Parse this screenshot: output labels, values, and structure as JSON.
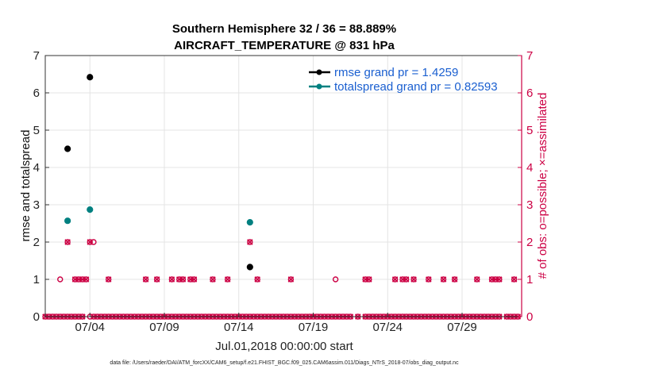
{
  "chart_data": {
    "type": "scatter",
    "title_line1": "Southern Hemisphere 32 / 36 = 88.889%",
    "title_line2": "AIRCRAFT_TEMPERATURE @ 831 hPa",
    "xlabel": "Jul.01,2018 00:00:00 start",
    "ylabel_left": "rmse and totalspread",
    "ylabel_right": "# of obs: o=possible; ×=assimilated",
    "footnote": "data file: /Users/raeder/DAI/ATM_forcXX/CAM6_setup/f.e21.FHIST_BGC.f09_025.CAM6assim.011/Diags_NTrS_2018-07/obs_diag_output.nc",
    "xlim_days": [
      1,
      33
    ],
    "x_ticks": [
      {
        "day": 4,
        "label": "07/04"
      },
      {
        "day": 9,
        "label": "07/09"
      },
      {
        "day": 14,
        "label": "07/14"
      },
      {
        "day": 19,
        "label": "07/19"
      },
      {
        "day": 24,
        "label": "07/24"
      },
      {
        "day": 29,
        "label": "07/29"
      }
    ],
    "ylim_left": [
      0,
      7
    ],
    "ylim_right": [
      0,
      7
    ],
    "y_ticks": [
      0,
      1,
      2,
      3,
      4,
      5,
      6,
      7
    ],
    "grid": true,
    "legend_placement": "top-right",
    "series": [
      {
        "name": "rmse grand pr = 1.4259",
        "color": "#000000",
        "points": [
          [
            2.5,
            4.5
          ],
          [
            4.0,
            6.42
          ],
          [
            14.75,
            1.33
          ]
        ]
      },
      {
        "name": "totalspread grand pr = 0.82593",
        "color": "#008080",
        "points": [
          [
            2.5,
            2.57
          ],
          [
            4.0,
            2.87
          ],
          [
            14.75,
            2.53
          ]
        ]
      }
    ],
    "obs_possible": {
      "color": "#cc0044",
      "points": [
        [
          1.0,
          0
        ],
        [
          1.25,
          0
        ],
        [
          1.5,
          0
        ],
        [
          1.75,
          0
        ],
        [
          2.0,
          0
        ],
        [
          2.25,
          0
        ],
        [
          2.5,
          0
        ],
        [
          2.75,
          0
        ],
        [
          3.0,
          0
        ],
        [
          3.25,
          0
        ],
        [
          3.5,
          0
        ],
        [
          4.0,
          0
        ],
        [
          4.25,
          0
        ],
        [
          4.5,
          0
        ],
        [
          4.75,
          0
        ],
        [
          5.0,
          0
        ],
        [
          5.25,
          0
        ],
        [
          5.5,
          0
        ],
        [
          5.75,
          0
        ],
        [
          6.0,
          0
        ],
        [
          6.25,
          0
        ],
        [
          6.5,
          0
        ],
        [
          6.75,
          0
        ],
        [
          7.0,
          0
        ],
        [
          7.25,
          0
        ],
        [
          7.5,
          0
        ],
        [
          7.75,
          0
        ],
        [
          8.0,
          0
        ],
        [
          8.25,
          0
        ],
        [
          8.5,
          0
        ],
        [
          8.75,
          0
        ],
        [
          9.0,
          0
        ],
        [
          9.25,
          0
        ],
        [
          9.5,
          0
        ],
        [
          9.75,
          0
        ],
        [
          10.0,
          0
        ],
        [
          10.25,
          0
        ],
        [
          10.5,
          0
        ],
        [
          10.75,
          0
        ],
        [
          11.0,
          0
        ],
        [
          11.25,
          0
        ],
        [
          11.5,
          0
        ],
        [
          11.75,
          0
        ],
        [
          12.0,
          0
        ],
        [
          12.25,
          0
        ],
        [
          12.5,
          0
        ],
        [
          12.75,
          0
        ],
        [
          13.0,
          0
        ],
        [
          13.25,
          0
        ],
        [
          13.5,
          0
        ],
        [
          13.75,
          0
        ],
        [
          14.0,
          0
        ],
        [
          14.25,
          0
        ],
        [
          14.5,
          0
        ],
        [
          14.75,
          0
        ],
        [
          15.0,
          0
        ],
        [
          15.25,
          0
        ],
        [
          15.5,
          0
        ],
        [
          15.75,
          0
        ],
        [
          16.0,
          0
        ],
        [
          16.25,
          0
        ],
        [
          16.5,
          0
        ],
        [
          16.75,
          0
        ],
        [
          17.0,
          0
        ],
        [
          17.25,
          0
        ],
        [
          17.5,
          0
        ],
        [
          17.75,
          0
        ],
        [
          18.0,
          0
        ],
        [
          18.25,
          0
        ],
        [
          18.5,
          0
        ],
        [
          18.75,
          0
        ],
        [
          19.0,
          0
        ],
        [
          19.25,
          0
        ],
        [
          19.5,
          0
        ],
        [
          19.75,
          0
        ],
        [
          20.0,
          0
        ],
        [
          20.25,
          0
        ],
        [
          20.5,
          0
        ],
        [
          20.75,
          0
        ],
        [
          21.0,
          0
        ],
        [
          21.25,
          0
        ],
        [
          21.5,
          0
        ],
        [
          22.0,
          0
        ],
        [
          22.5,
          0
        ],
        [
          22.75,
          0
        ],
        [
          23.0,
          0
        ],
        [
          23.25,
          0
        ],
        [
          23.5,
          0
        ],
        [
          23.75,
          0
        ],
        [
          24.0,
          0
        ],
        [
          24.25,
          0
        ],
        [
          24.5,
          0
        ],
        [
          24.75,
          0
        ],
        [
          25.0,
          0
        ],
        [
          25.25,
          0
        ],
        [
          25.5,
          0
        ],
        [
          25.75,
          0
        ],
        [
          26.0,
          0
        ],
        [
          26.25,
          0
        ],
        [
          26.5,
          0
        ],
        [
          26.75,
          0
        ],
        [
          27.0,
          0
        ],
        [
          27.25,
          0
        ],
        [
          27.5,
          0
        ],
        [
          27.75,
          0
        ],
        [
          28.0,
          0
        ],
        [
          28.25,
          0
        ],
        [
          28.5,
          0
        ],
        [
          28.75,
          0
        ],
        [
          29.0,
          0
        ],
        [
          29.25,
          0
        ],
        [
          29.5,
          0
        ],
        [
          29.75,
          0
        ],
        [
          30.0,
          0
        ],
        [
          30.25,
          0
        ],
        [
          30.5,
          0
        ],
        [
          30.75,
          0
        ],
        [
          31.0,
          0
        ],
        [
          31.25,
          0
        ],
        [
          31.5,
          0
        ],
        [
          32.0,
          0
        ],
        [
          32.25,
          0
        ],
        [
          32.5,
          0
        ],
        [
          32.75,
          0
        ],
        [
          2.0,
          1
        ],
        [
          3.0,
          1
        ],
        [
          3.25,
          1
        ],
        [
          3.5,
          1
        ],
        [
          3.75,
          1
        ],
        [
          5.25,
          1
        ],
        [
          7.75,
          1
        ],
        [
          8.5,
          1
        ],
        [
          9.5,
          1
        ],
        [
          10.0,
          1
        ],
        [
          10.25,
          1
        ],
        [
          10.75,
          1
        ],
        [
          11.0,
          1
        ],
        [
          12.25,
          1
        ],
        [
          13.25,
          1
        ],
        [
          15.25,
          1
        ],
        [
          17.5,
          1
        ],
        [
          20.5,
          1
        ],
        [
          22.5,
          1
        ],
        [
          22.75,
          1
        ],
        [
          24.5,
          1
        ],
        [
          25.0,
          1
        ],
        [
          25.25,
          1
        ],
        [
          25.75,
          1
        ],
        [
          26.75,
          1
        ],
        [
          27.75,
          1
        ],
        [
          28.5,
          1
        ],
        [
          30.0,
          1
        ],
        [
          31.0,
          1
        ],
        [
          31.25,
          1
        ],
        [
          31.5,
          1
        ],
        [
          32.5,
          1
        ],
        [
          2.5,
          2
        ],
        [
          4.0,
          2
        ],
        [
          4.25,
          2
        ],
        [
          14.75,
          2
        ]
      ]
    },
    "obs_assimilated": {
      "color": "#cc0044",
      "points": [
        [
          1.0,
          0
        ],
        [
          1.25,
          0
        ],
        [
          1.5,
          0
        ],
        [
          1.75,
          0
        ],
        [
          2.0,
          0
        ],
        [
          2.25,
          0
        ],
        [
          2.5,
          0
        ],
        [
          2.75,
          0
        ],
        [
          3.0,
          0
        ],
        [
          3.25,
          0
        ],
        [
          3.5,
          0
        ],
        [
          4.25,
          0
        ],
        [
          4.5,
          0
        ],
        [
          4.75,
          0
        ],
        [
          5.0,
          0
        ],
        [
          5.25,
          0
        ],
        [
          5.5,
          0
        ],
        [
          5.75,
          0
        ],
        [
          6.0,
          0
        ],
        [
          6.25,
          0
        ],
        [
          6.5,
          0
        ],
        [
          6.75,
          0
        ],
        [
          7.0,
          0
        ],
        [
          7.25,
          0
        ],
        [
          7.5,
          0
        ],
        [
          7.75,
          0
        ],
        [
          8.0,
          0
        ],
        [
          8.25,
          0
        ],
        [
          8.5,
          0
        ],
        [
          8.75,
          0
        ],
        [
          9.0,
          0
        ],
        [
          9.25,
          0
        ],
        [
          9.5,
          0
        ],
        [
          9.75,
          0
        ],
        [
          10.0,
          0
        ],
        [
          10.25,
          0
        ],
        [
          10.5,
          0
        ],
        [
          10.75,
          0
        ],
        [
          11.0,
          0
        ],
        [
          11.25,
          0
        ],
        [
          11.5,
          0
        ],
        [
          11.75,
          0
        ],
        [
          12.0,
          0
        ],
        [
          12.25,
          0
        ],
        [
          12.5,
          0
        ],
        [
          12.75,
          0
        ],
        [
          13.0,
          0
        ],
        [
          13.25,
          0
        ],
        [
          13.5,
          0
        ],
        [
          13.75,
          0
        ],
        [
          14.0,
          0
        ],
        [
          14.25,
          0
        ],
        [
          14.5,
          0
        ],
        [
          14.75,
          0
        ],
        [
          15.0,
          0
        ],
        [
          15.25,
          0
        ],
        [
          15.5,
          0
        ],
        [
          15.75,
          0
        ],
        [
          16.0,
          0
        ],
        [
          16.25,
          0
        ],
        [
          16.5,
          0
        ],
        [
          16.75,
          0
        ],
        [
          17.0,
          0
        ],
        [
          17.25,
          0
        ],
        [
          17.5,
          0
        ],
        [
          17.75,
          0
        ],
        [
          18.0,
          0
        ],
        [
          18.25,
          0
        ],
        [
          18.5,
          0
        ],
        [
          18.75,
          0
        ],
        [
          19.0,
          0
        ],
        [
          19.25,
          0
        ],
        [
          19.5,
          0
        ],
        [
          19.75,
          0
        ],
        [
          20.0,
          0
        ],
        [
          20.25,
          0
        ],
        [
          20.5,
          0
        ],
        [
          20.75,
          0
        ],
        [
          21.0,
          0
        ],
        [
          21.25,
          0
        ],
        [
          21.5,
          0
        ],
        [
          22.0,
          0
        ],
        [
          22.5,
          0
        ],
        [
          22.75,
          0
        ],
        [
          23.0,
          0
        ],
        [
          23.25,
          0
        ],
        [
          23.5,
          0
        ],
        [
          23.75,
          0
        ],
        [
          24.0,
          0
        ],
        [
          24.25,
          0
        ],
        [
          24.5,
          0
        ],
        [
          24.75,
          0
        ],
        [
          25.0,
          0
        ],
        [
          25.25,
          0
        ],
        [
          25.5,
          0
        ],
        [
          25.75,
          0
        ],
        [
          26.0,
          0
        ],
        [
          26.25,
          0
        ],
        [
          26.5,
          0
        ],
        [
          26.75,
          0
        ],
        [
          27.0,
          0
        ],
        [
          27.25,
          0
        ],
        [
          27.5,
          0
        ],
        [
          27.75,
          0
        ],
        [
          28.0,
          0
        ],
        [
          28.25,
          0
        ],
        [
          28.5,
          0
        ],
        [
          28.75,
          0
        ],
        [
          29.0,
          0
        ],
        [
          29.25,
          0
        ],
        [
          29.5,
          0
        ],
        [
          29.75,
          0
        ],
        [
          30.0,
          0
        ],
        [
          30.25,
          0
        ],
        [
          30.5,
          0
        ],
        [
          30.75,
          0
        ],
        [
          31.0,
          0
        ],
        [
          31.25,
          0
        ],
        [
          31.5,
          0
        ],
        [
          32.0,
          0
        ],
        [
          32.25,
          0
        ],
        [
          32.5,
          0
        ],
        [
          32.75,
          0
        ],
        [
          3.0,
          1
        ],
        [
          3.25,
          1
        ],
        [
          3.5,
          1
        ],
        [
          3.75,
          1
        ],
        [
          5.25,
          1
        ],
        [
          7.75,
          1
        ],
        [
          8.5,
          1
        ],
        [
          9.5,
          1
        ],
        [
          10.0,
          1
        ],
        [
          10.25,
          1
        ],
        [
          10.75,
          1
        ],
        [
          11.0,
          1
        ],
        [
          12.25,
          1
        ],
        [
          13.25,
          1
        ],
        [
          15.25,
          1
        ],
        [
          17.5,
          1
        ],
        [
          22.5,
          1
        ],
        [
          22.75,
          1
        ],
        [
          24.5,
          1
        ],
        [
          25.0,
          1
        ],
        [
          25.25,
          1
        ],
        [
          25.75,
          1
        ],
        [
          26.75,
          1
        ],
        [
          27.75,
          1
        ],
        [
          28.5,
          1
        ],
        [
          30.0,
          1
        ],
        [
          31.0,
          1
        ],
        [
          31.25,
          1
        ],
        [
          31.5,
          1
        ],
        [
          32.5,
          1
        ],
        [
          2.5,
          2
        ],
        [
          4.0,
          2
        ],
        [
          14.75,
          2
        ]
      ]
    }
  }
}
